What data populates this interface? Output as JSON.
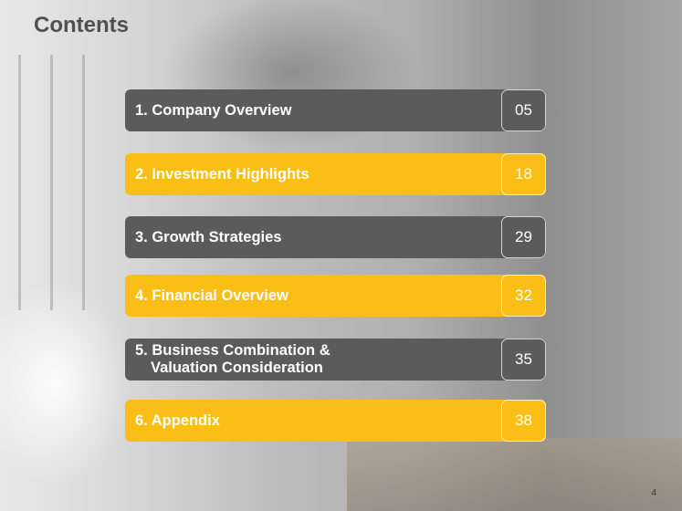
{
  "title": "Contents",
  "items": [
    {
      "label": "1. Company Overview",
      "page": "05",
      "style": "dark"
    },
    {
      "label": "2. Investment Highlights",
      "page": "18",
      "style": "yellow"
    },
    {
      "label": "3. Growth Strategies",
      "page": "29",
      "style": "dark"
    },
    {
      "label": "4. Financial Overview",
      "page": "32",
      "style": "yellow"
    },
    {
      "label_line1": "5. Business Combination &",
      "label_line2": "Valuation Consideration",
      "page": "35",
      "style": "dark"
    },
    {
      "label": "6. Appendix",
      "page": "38",
      "style": "yellow"
    }
  ],
  "page_number": "4",
  "colors": {
    "dark": "#5b5b5b",
    "yellow": "#fbbe16",
    "title": "#505050"
  }
}
